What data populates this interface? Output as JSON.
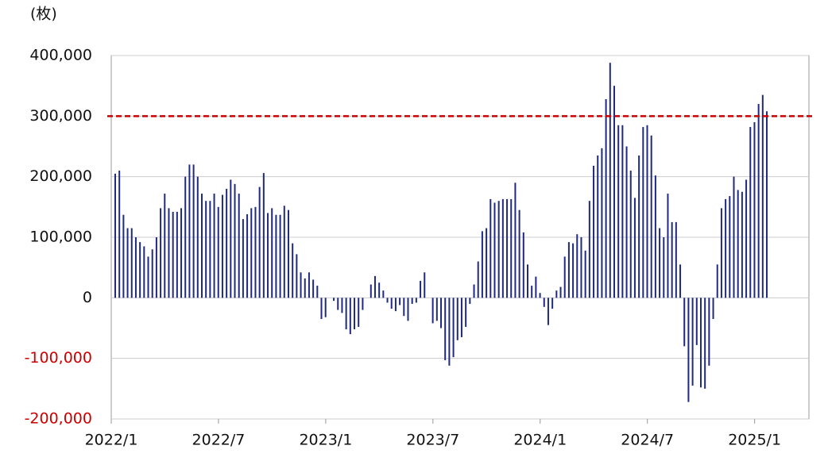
{
  "chart_data": {
    "type": "bar",
    "y_label": "(枚)",
    "categories": [
      "2022/1",
      null,
      null,
      null,
      null,
      null,
      null,
      null,
      null,
      null,
      null,
      null,
      null,
      null,
      null,
      null,
      null,
      null,
      null,
      null,
      null,
      null,
      null,
      null,
      null,
      null,
      "2022/7",
      null,
      null,
      null,
      null,
      null,
      null,
      null,
      null,
      null,
      null,
      null,
      null,
      null,
      null,
      null,
      null,
      null,
      null,
      null,
      null,
      null,
      null,
      null,
      null,
      null,
      "2023/1",
      null,
      null,
      null,
      null,
      null,
      null,
      null,
      null,
      null,
      null,
      null,
      null,
      null,
      null,
      null,
      null,
      null,
      null,
      null,
      null,
      null,
      null,
      null,
      null,
      null,
      "2023/7",
      null,
      null,
      null,
      null,
      null,
      null,
      null,
      null,
      null,
      null,
      null,
      null,
      null,
      null,
      null,
      null,
      null,
      null,
      null,
      null,
      null,
      null,
      null,
      null,
      null,
      "2024/1",
      null,
      null,
      null,
      null,
      null,
      null,
      null,
      null,
      null,
      null,
      null,
      null,
      null,
      null,
      null,
      null,
      null,
      null,
      null,
      null,
      null,
      null,
      null,
      null,
      null,
      "2024/7",
      null,
      null,
      null,
      null,
      null,
      null,
      null,
      null,
      null,
      null,
      null,
      null,
      null,
      null,
      null,
      null,
      null,
      null,
      null,
      null,
      null,
      null,
      null,
      null,
      null,
      "2025/1",
      null,
      null
    ],
    "values": [
      205000,
      210000,
      137000,
      115000,
      115000,
      100000,
      92000,
      85000,
      68000,
      80000,
      100000,
      148000,
      172000,
      148000,
      142000,
      142000,
      148000,
      200000,
      220000,
      220000,
      200000,
      172000,
      160000,
      160000,
      172000,
      150000,
      170000,
      180000,
      195000,
      188000,
      172000,
      130000,
      138000,
      148000,
      150000,
      183000,
      206000,
      140000,
      148000,
      137000,
      137000,
      152000,
      145000,
      90000,
      72000,
      42000,
      32000,
      42000,
      30000,
      20000,
      -35000,
      -32000,
      0,
      -5000,
      -20000,
      -25000,
      -52000,
      -60000,
      -52000,
      -48000,
      -20000,
      0,
      22000,
      36000,
      25000,
      12000,
      -8000,
      -18000,
      -22000,
      -12000,
      -30000,
      -38000,
      -10000,
      -8000,
      28000,
      42000,
      0,
      -42000,
      -38000,
      -50000,
      -103000,
      -112000,
      -98000,
      -70000,
      -65000,
      -48000,
      -10000,
      22000,
      60000,
      110000,
      115000,
      163000,
      157000,
      160000,
      163000,
      163000,
      163000,
      190000,
      145000,
      108000,
      55000,
      20000,
      35000,
      8000,
      -15000,
      -45000,
      -18000,
      12000,
      18000,
      68000,
      92000,
      90000,
      105000,
      100000,
      78000,
      160000,
      218000,
      235000,
      247000,
      328000,
      388000,
      350000,
      285000,
      285000,
      250000,
      210000,
      165000,
      235000,
      282000,
      285000,
      268000,
      202000,
      115000,
      100000,
      172000,
      125000,
      125000,
      55000,
      -80000,
      -172000,
      -145000,
      -78000,
      -148000,
      -150000,
      -112000,
      -35000,
      55000,
      148000,
      163000,
      168000,
      200000,
      178000,
      175000,
      195000,
      282000,
      290000,
      320000,
      335000,
      308000
    ],
    "color": "#1f2a80",
    "ylim": [
      -200000,
      400000
    ],
    "yticks": [
      {
        "value": -200000,
        "label": "-200,000"
      },
      {
        "value": -100000,
        "label": "-100,000"
      },
      0,
      {
        "value": 100000,
        "label": "100,000"
      },
      {
        "value": 200000,
        "label": "200,000"
      },
      {
        "value": 300000,
        "label": "300,000"
      },
      {
        "value": 400000,
        "label": "400,000"
      }
    ],
    "negative_tick_color": "#cc0000",
    "reference_line": {
      "value": 300000,
      "color": "#cc0000"
    }
  }
}
